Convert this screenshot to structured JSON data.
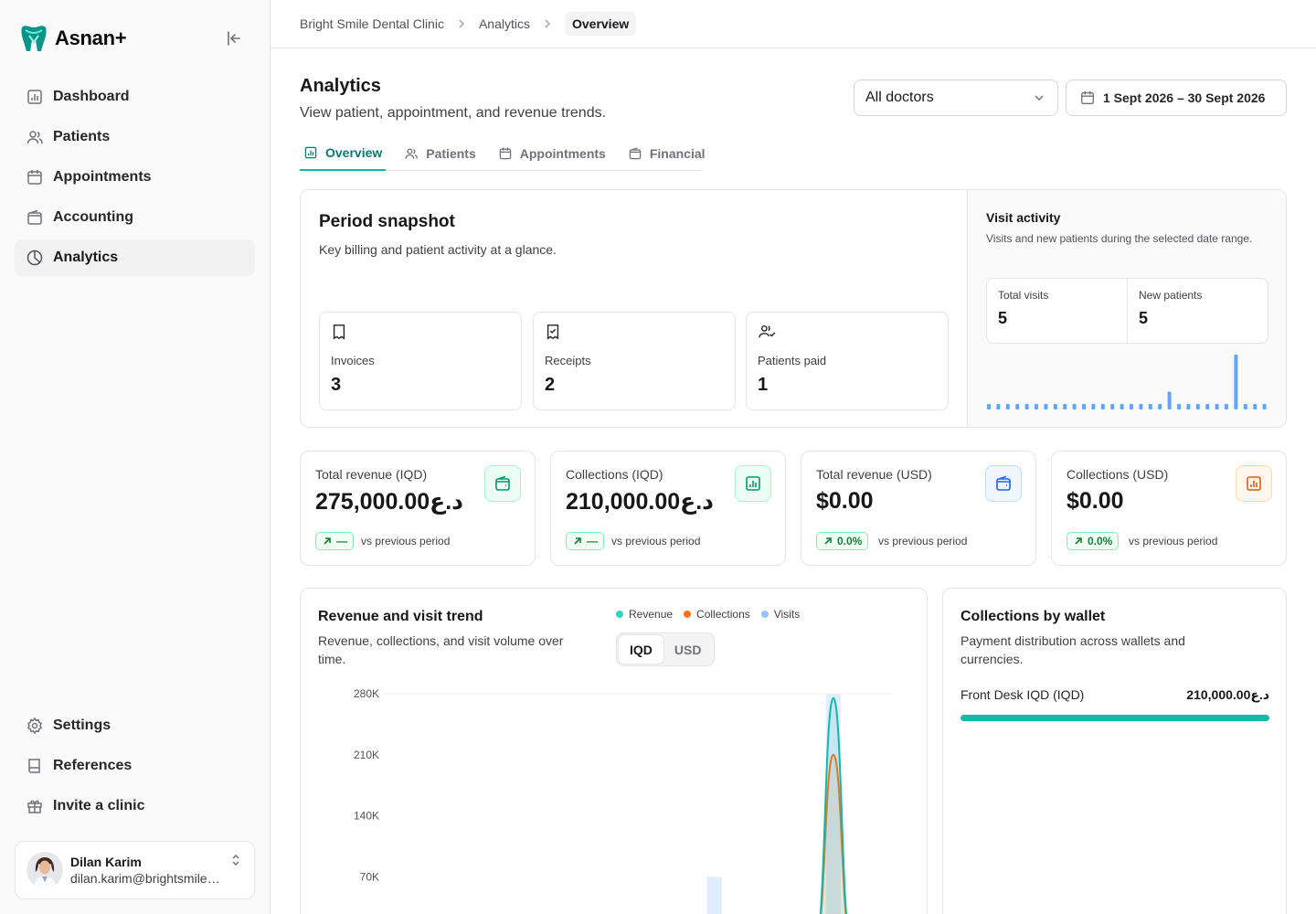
{
  "brand": {
    "name": "Asnan+"
  },
  "sidebar": {
    "items": [
      {
        "label": "Dashboard",
        "icon": "chart-bar-icon"
      },
      {
        "label": "Patients",
        "icon": "users-icon"
      },
      {
        "label": "Appointments",
        "icon": "calendar-icon"
      },
      {
        "label": "Accounting",
        "icon": "wallet-icon"
      },
      {
        "label": "Analytics",
        "icon": "pie-chart-icon",
        "active": true
      }
    ],
    "bottom_items": [
      {
        "label": "Settings",
        "icon": "gear-icon"
      },
      {
        "label": "References",
        "icon": "book-icon"
      },
      {
        "label": "Invite a clinic",
        "icon": "gift-icon"
      }
    ],
    "user": {
      "name": "Dilan Karim",
      "email": "dilan.karim@brightsmile.ex..."
    }
  },
  "breadcrumb": [
    "Bright Smile Dental Clinic",
    "Analytics",
    "Overview"
  ],
  "page": {
    "title": "Analytics",
    "subtitle": "View patient, appointment, and revenue trends.",
    "doctor_filter": "All doctors",
    "date_range": "1 Sept 2026 – 30 Sept 2026",
    "tabs": [
      {
        "label": "Overview",
        "active": true
      },
      {
        "label": "Patients"
      },
      {
        "label": "Appointments"
      },
      {
        "label": "Financial"
      }
    ]
  },
  "snapshot": {
    "title": "Period snapshot",
    "subtitle": "Key billing and patient activity at a glance.",
    "metrics": [
      {
        "label": "Invoices",
        "value": "3",
        "icon": "receipt-icon"
      },
      {
        "label": "Receipts",
        "value": "2",
        "icon": "receipt-check-icon"
      },
      {
        "label": "Patients paid",
        "value": "1",
        "icon": "user-check-icon"
      }
    ]
  },
  "visit_activity": {
    "title": "Visit activity",
    "subtitle": "Visits and new patients during the selected date range.",
    "total_visits_label": "Total visits",
    "total_visits": "5",
    "new_patients_label": "New patients",
    "new_patients": "5",
    "daily_visits": [
      0,
      0,
      0,
      0,
      0,
      0,
      0,
      0,
      0,
      0,
      0,
      0,
      0,
      0,
      0,
      0,
      0,
      0,
      0,
      1,
      0,
      0,
      0,
      0,
      0,
      0,
      4,
      0,
      0,
      0
    ],
    "bar_color": "#60a5fa"
  },
  "kpis": [
    {
      "label": "Total revenue (IQD)",
      "value": "275,000.00د.ع",
      "change": "—",
      "vs": "vs previous period",
      "icon": "wallet-icon",
      "color": "#059669",
      "bg": "#ecfdf5",
      "border": "#a7f3d0"
    },
    {
      "label": "Collections (IQD)",
      "value": "210,000.00د.ع",
      "change": "—",
      "vs": "vs previous period",
      "icon": "chart-bar-icon",
      "color": "#059669",
      "bg": "#ecfdf5",
      "border": "#a7f3d0"
    },
    {
      "label": "Total revenue (USD)",
      "value": "$0.00",
      "change": "0.0%",
      "vs": "vs previous period",
      "icon": "wallet-icon",
      "color": "#2563eb",
      "bg": "#eff6ff",
      "border": "#bfdbfe"
    },
    {
      "label": "Collections (USD)",
      "value": "$0.00",
      "change": "0.0%",
      "vs": "vs previous period",
      "icon": "chart-bar-icon",
      "color": "#ea580c",
      "bg": "#fff7ed",
      "border": "#fed7aa"
    }
  ],
  "trend": {
    "title": "Revenue and visit trend",
    "subtitle": "Revenue, collections, and visit volume over time.",
    "legend": [
      {
        "name": "Revenue",
        "color": "#2dd4bf"
      },
      {
        "name": "Collections",
        "color": "#f97316"
      },
      {
        "name": "Visits",
        "color": "#93c5fd"
      }
    ],
    "currency_options": [
      "IQD",
      "USD"
    ],
    "selected_currency": "IQD"
  },
  "chart_data": {
    "type": "line",
    "title": "Revenue and visit trend",
    "y_ticks": [
      "280K",
      "210K",
      "140K",
      "70K"
    ],
    "ylim": [
      0,
      280000
    ],
    "x_days": 30,
    "series": [
      {
        "name": "Revenue",
        "values": [
          0,
          0,
          0,
          0,
          0,
          0,
          0,
          0,
          0,
          0,
          0,
          0,
          0,
          0,
          0,
          0,
          0,
          0,
          0,
          0,
          0,
          0,
          0,
          0,
          0,
          0,
          275000,
          0,
          0,
          0
        ]
      },
      {
        "name": "Collections",
        "values": [
          0,
          0,
          0,
          0,
          0,
          0,
          0,
          0,
          0,
          0,
          0,
          0,
          0,
          0,
          0,
          0,
          0,
          0,
          0,
          0,
          0,
          0,
          0,
          0,
          0,
          0,
          210000,
          0,
          0,
          0
        ]
      },
      {
        "name": "Visits",
        "values": [
          0,
          0,
          0,
          0,
          0,
          0,
          0,
          0,
          0,
          0,
          0,
          0,
          0,
          0,
          0,
          0,
          0,
          0,
          0,
          1,
          0,
          0,
          0,
          0,
          0,
          0,
          4,
          0,
          0,
          0
        ]
      }
    ],
    "grid": false,
    "legend": "top"
  },
  "wallets": {
    "title": "Collections by wallet",
    "subtitle": "Payment distribution across wallets and currencies.",
    "items": [
      {
        "name": "Front Desk IQD (IQD)",
        "amount": "210,000.00د.ع",
        "share": 1.0
      }
    ]
  }
}
